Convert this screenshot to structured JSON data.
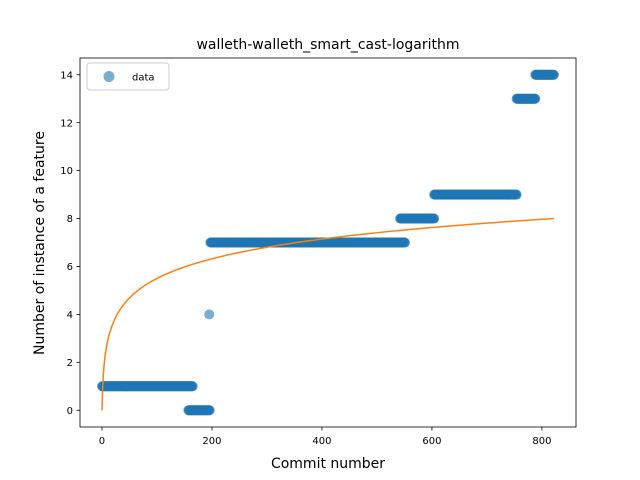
{
  "chart_data": {
    "type": "scatter",
    "title": "walleth-walleth_smart_cast-logarithm",
    "xlabel": "Commit number",
    "ylabel": "Number of instance of a feature",
    "xlim": [
      -40,
      862
    ],
    "ylim": [
      -0.7,
      14.7
    ],
    "xticks": [
      0,
      200,
      400,
      600,
      800
    ],
    "yticks": [
      0,
      2,
      4,
      6,
      8,
      10,
      12,
      14
    ],
    "legend": {
      "placement": "top-left",
      "entries": [
        "data"
      ]
    },
    "colors": {
      "data": "#1f77b4",
      "fit": "#ff7f0e"
    },
    "series": [
      {
        "name": "data",
        "kind": "scatter",
        "segments": [
          {
            "x_start": 0,
            "x_end": 165,
            "y": 1
          },
          {
            "x_start": 157,
            "x_end": 196,
            "y": 0
          },
          {
            "x_start": 195,
            "x_end": 195,
            "y": 4
          },
          {
            "x_start": 197,
            "x_end": 551,
            "y": 7
          },
          {
            "x_start": 542,
            "x_end": 604,
            "y": 8
          },
          {
            "x_start": 604,
            "x_end": 754,
            "y": 9
          },
          {
            "x_start": 754,
            "x_end": 788,
            "y": 13
          },
          {
            "x_start": 788,
            "x_end": 822,
            "y": 14
          }
        ]
      },
      {
        "kind": "line",
        "x_start": 0,
        "x_end": 822,
        "y_at_end": 8,
        "model": "logarithmic"
      }
    ]
  }
}
